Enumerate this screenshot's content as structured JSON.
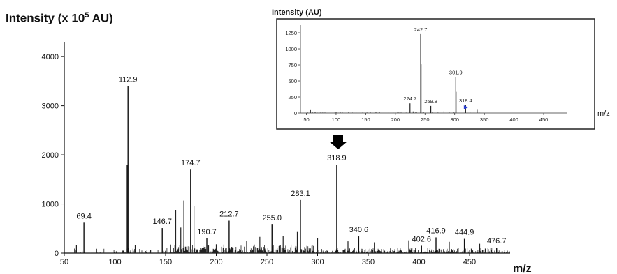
{
  "chart_data": [
    {
      "type": "line",
      "ylabel_text": "Intensity (x 10",
      "ylabel_exponent": "5",
      "ylabel_unit": " AU)",
      "xlabel": "m/z",
      "xlim": [
        50,
        490
      ],
      "ylim": [
        0,
        4300
      ],
      "x_ticks": [
        50,
        100,
        150,
        200,
        250,
        300,
        350,
        400,
        450
      ],
      "y_ticks": [
        0,
        1000,
        2000,
        3000,
        4000
      ],
      "peaks": [
        {
          "x": 69.4,
          "y": 620,
          "label": "69.4"
        },
        {
          "x": 112.9,
          "y": 3400,
          "label": "112.9"
        },
        {
          "x": 146.7,
          "y": 510,
          "label": "146.7"
        },
        {
          "x": 174.7,
          "y": 1700,
          "label": "174.7"
        },
        {
          "x": 190.7,
          "y": 300,
          "label": "190.7"
        },
        {
          "x": 212.7,
          "y": 660,
          "label": "212.7"
        },
        {
          "x": 255.0,
          "y": 580,
          "label": "255.0"
        },
        {
          "x": 283.1,
          "y": 1080,
          "label": "283.1"
        },
        {
          "x": 318.9,
          "y": 1800,
          "label": "318.9"
        },
        {
          "x": 340.6,
          "y": 340,
          "label": "340.6"
        },
        {
          "x": 402.6,
          "y": 150,
          "label": "402.6"
        },
        {
          "x": 416.9,
          "y": 320,
          "label": "416.9"
        },
        {
          "x": 444.9,
          "y": 290,
          "label": "444.9"
        },
        {
          "x": 476.7,
          "y": 110,
          "label": "476.7"
        }
      ],
      "unlabeled_peaks": [
        {
          "x": 62,
          "y": 160
        },
        {
          "x": 160,
          "y": 880
        },
        {
          "x": 168,
          "y": 1070
        },
        {
          "x": 178,
          "y": 960
        },
        {
          "x": 165,
          "y": 520
        },
        {
          "x": 243,
          "y": 330
        },
        {
          "x": 266,
          "y": 350
        },
        {
          "x": 280,
          "y": 430
        },
        {
          "x": 120,
          "y": 160
        },
        {
          "x": 200,
          "y": 180
        },
        {
          "x": 230,
          "y": 250
        },
        {
          "x": 300,
          "y": 300
        },
        {
          "x": 330,
          "y": 240
        },
        {
          "x": 356,
          "y": 220
        },
        {
          "x": 390,
          "y": 260
        },
        {
          "x": 430,
          "y": 230
        },
        {
          "x": 460,
          "y": 190
        },
        {
          "x": 112.0,
          "y": 1800
        }
      ],
      "noise_level": 110
    },
    {
      "type": "line",
      "title": "Intensity  (AU)",
      "xlabel": "m/z",
      "xlim": [
        40,
        490
      ],
      "ylim": [
        0,
        1370
      ],
      "x_ticks": [
        50,
        100,
        150,
        200,
        250,
        300,
        350,
        400,
        450
      ],
      "y_ticks": [
        0,
        250,
        500,
        750,
        1000,
        1250
      ],
      "peaks": [
        {
          "x": 224.7,
          "y": 150,
          "label": "224.7"
        },
        {
          "x": 242.7,
          "y": 1230,
          "label": "242.7"
        },
        {
          "x": 259.8,
          "y": 110,
          "label": "259.8"
        },
        {
          "x": 301.9,
          "y": 560,
          "label": "301.9"
        },
        {
          "x": 318.4,
          "y": 120,
          "label": "318.4"
        }
      ],
      "unlabeled_peaks": [
        {
          "x": 57,
          "y": 45
        },
        {
          "x": 243.5,
          "y": 760
        },
        {
          "x": 302.5,
          "y": 330
        },
        {
          "x": 338,
          "y": 50
        },
        {
          "x": 282,
          "y": 30
        },
        {
          "x": 230,
          "y": 25
        }
      ],
      "marker_x": 318.4,
      "marker_color": "#2a3fd8"
    }
  ],
  "arrow_color": "#000000"
}
